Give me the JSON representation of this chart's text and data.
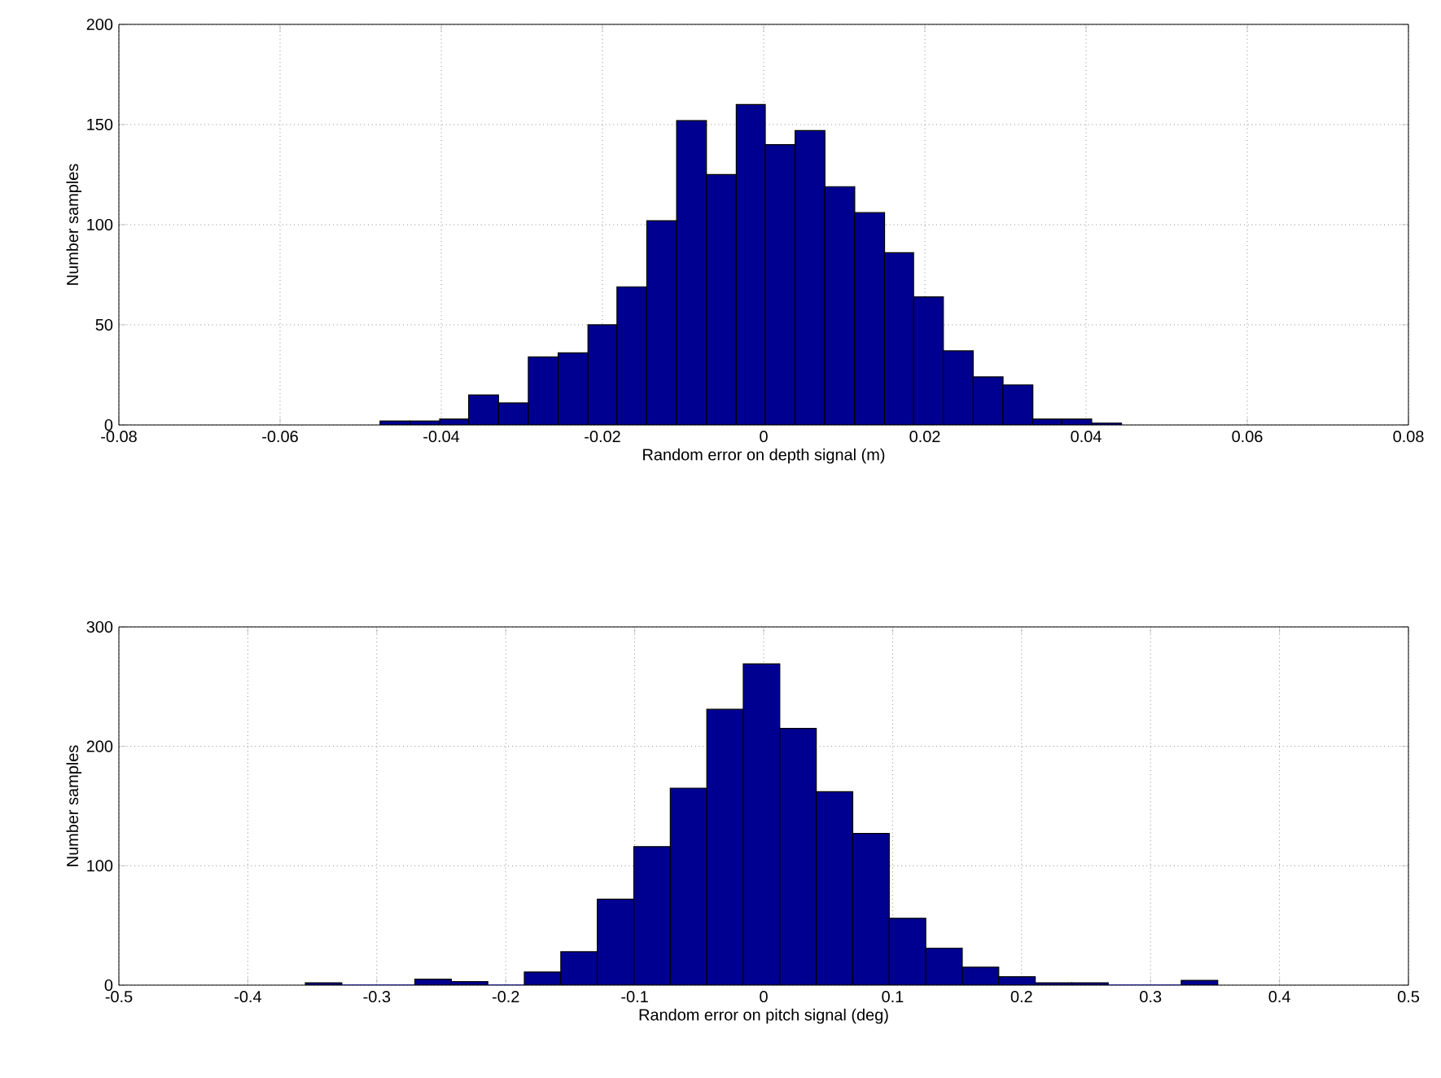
{
  "chart_data": [
    {
      "type": "histogram",
      "xlabel": "Random error on depth signal (m)",
      "ylabel": "Number samples",
      "color": "#000090",
      "bins": [
        -0.0476,
        -0.0439,
        -0.0402,
        -0.0366,
        -0.0329,
        -0.0292,
        -0.0255,
        -0.0218,
        -0.0182,
        -0.0145,
        -0.0108,
        -0.0071,
        -0.0034,
        0.0002,
        0.0039,
        0.0076,
        0.0113,
        0.015,
        0.0186,
        0.0223,
        0.026,
        0.0297,
        0.0334,
        0.037,
        0.0407,
        0.0444
      ],
      "values": [
        2,
        2,
        3,
        15,
        11,
        34,
        36,
        50,
        69,
        102,
        152,
        125,
        160,
        140,
        147,
        119,
        106,
        86,
        64,
        37,
        24,
        20,
        3,
        3,
        1
      ],
      "xlim": [
        -0.08,
        0.08
      ],
      "xticks": [
        -0.08,
        -0.06,
        -0.04,
        -0.02,
        0,
        0.02,
        0.04,
        0.06,
        0.08
      ],
      "ylim": [
        0,
        200
      ],
      "yticks": [
        0,
        50,
        100,
        150,
        200
      ],
      "grid": true
    },
    {
      "type": "histogram",
      "xlabel": "Random error on pitch signal (deg)",
      "ylabel": "Number samples",
      "color": "#000090",
      "bins": [
        -0.3554,
        -0.3271,
        -0.2988,
        -0.2705,
        -0.2422,
        -0.2139,
        -0.1856,
        -0.1573,
        -0.129,
        -0.1007,
        -0.0724,
        -0.0441,
        -0.0158,
        0.0125,
        0.0408,
        0.0691,
        0.0974,
        0.1257,
        0.154,
        0.1823,
        0.2106,
        0.2389,
        0.2672,
        0.2955,
        0.3238,
        0.3521
      ],
      "values": [
        2,
        0,
        0,
        5,
        3,
        0,
        11,
        28,
        72,
        116,
        165,
        231,
        269,
        215,
        162,
        127,
        56,
        31,
        15,
        7,
        2,
        2,
        0,
        0,
        4
      ],
      "xlim": [
        -0.5,
        0.5
      ],
      "xticks": [
        -0.5,
        -0.4,
        -0.3,
        -0.2,
        -0.1,
        0,
        0.1,
        0.2,
        0.3,
        0.4,
        0.5
      ],
      "ylim": [
        0,
        300
      ],
      "yticks": [
        0,
        100,
        200,
        300
      ],
      "grid": true
    }
  ]
}
